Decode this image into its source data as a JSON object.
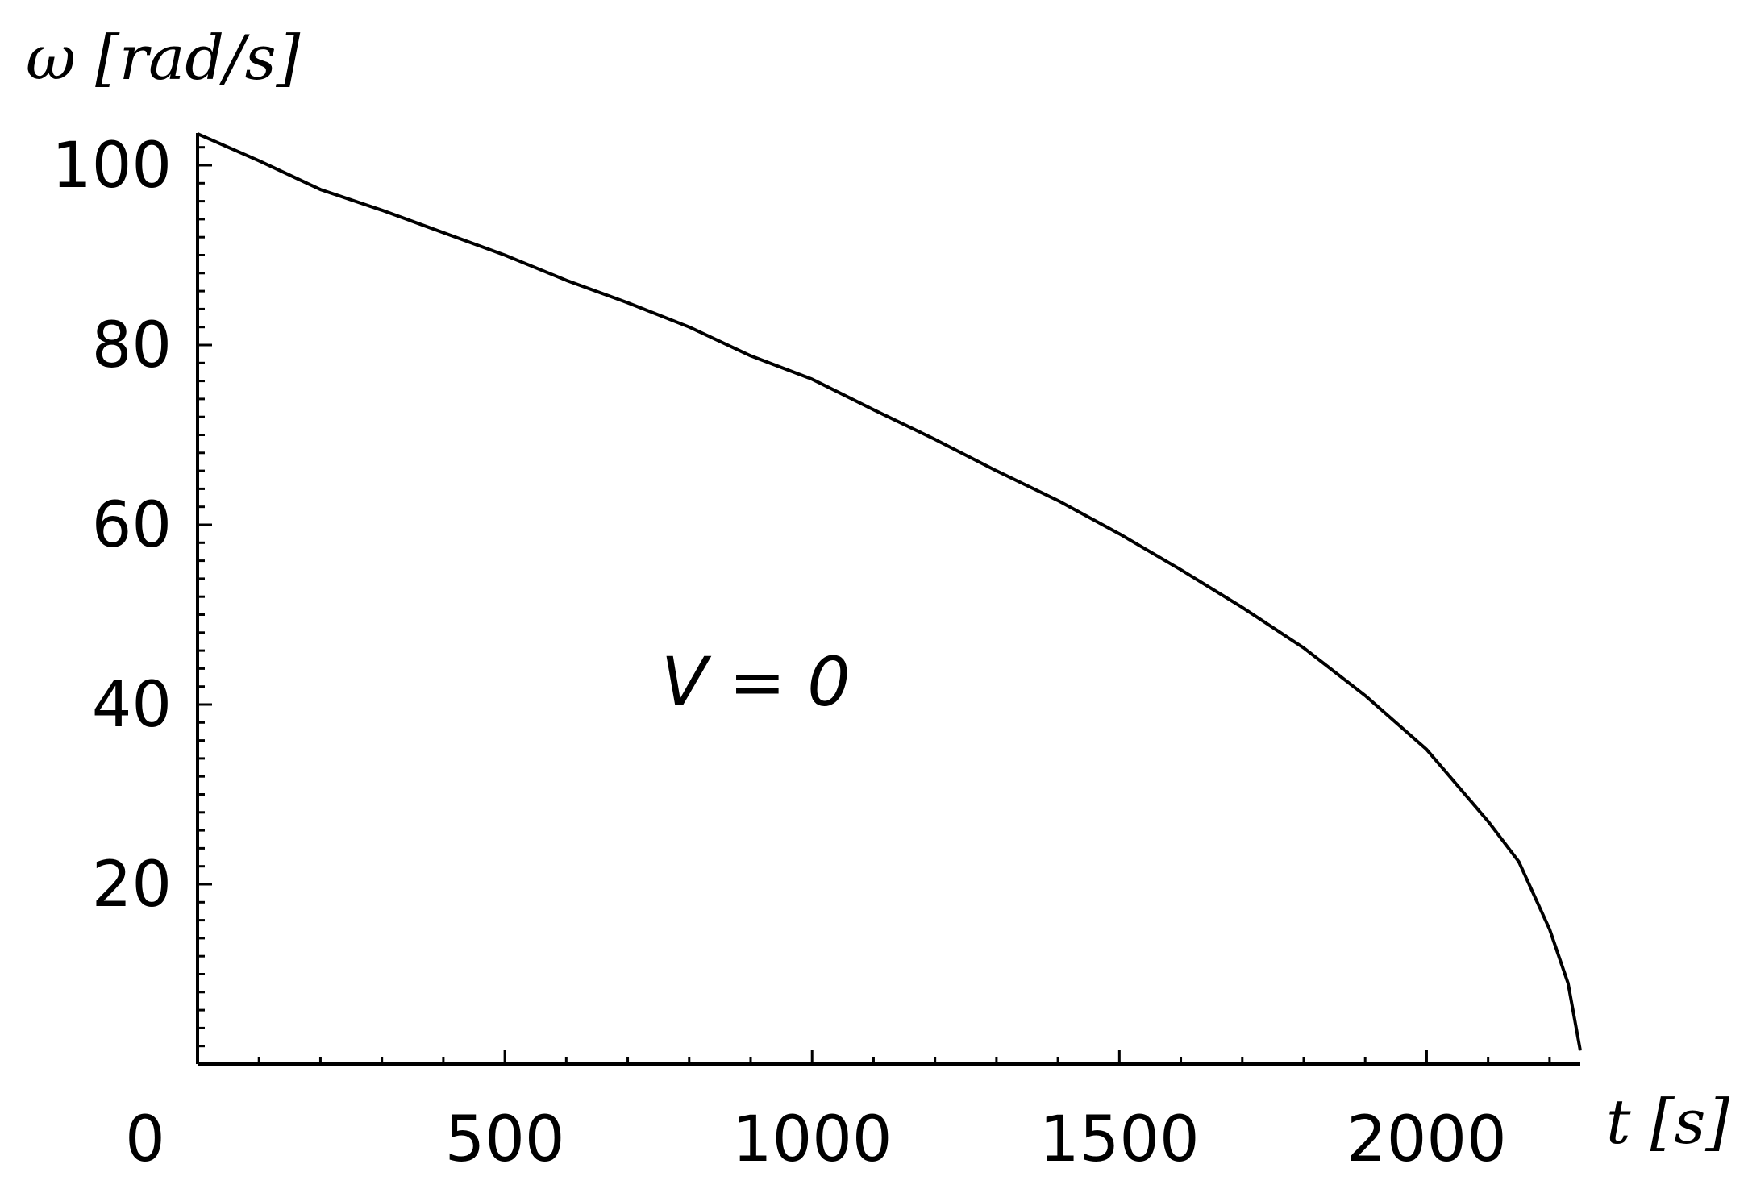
{
  "chart_data": {
    "type": "line",
    "title": "",
    "xlabel": "t [s]",
    "ylabel": "ω [rad/s]",
    "xlim": [
      0,
      2250
    ],
    "ylim": [
      0,
      104
    ],
    "x_ticks": [
      0,
      500,
      1000,
      1500,
      2000
    ],
    "x_tick_labels": [
      "0",
      "500",
      "1000",
      "1500",
      "2000"
    ],
    "y_ticks": [
      20,
      40,
      60,
      80,
      100
    ],
    "y_tick_labels": [
      "20",
      "40",
      "60",
      "80",
      "100"
    ],
    "grid": false,
    "legend": "none",
    "annotation": "V = 0",
    "series": [
      {
        "x": [
          0,
          100,
          200,
          300,
          400,
          500,
          600,
          700,
          800,
          900,
          1000,
          1100,
          1200,
          1300,
          1400,
          1500,
          1600,
          1700,
          1800,
          1900,
          2000,
          2050,
          2100,
          2150,
          2200,
          2230,
          2250
        ],
        "y": [
          103.5,
          100.5,
          97.3,
          95.0,
          92.5,
          90.0,
          87.2,
          84.7,
          82.0,
          78.8,
          76.2,
          72.8,
          69.5,
          66.0,
          62.7,
          59.0,
          55.0,
          50.8,
          46.3,
          41.0,
          35.0,
          31.0,
          27.0,
          22.5,
          15.0,
          9.0,
          1.5
        ]
      }
    ]
  }
}
